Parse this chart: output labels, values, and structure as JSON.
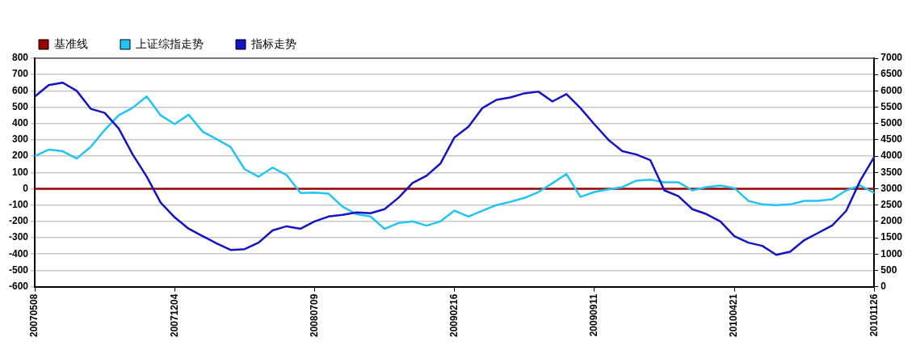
{
  "chart_data": {
    "type": "line",
    "categories": [
      "20070508",
      null,
      null,
      null,
      null,
      null,
      null,
      null,
      null,
      null,
      "20071204",
      null,
      null,
      null,
      null,
      null,
      null,
      null,
      null,
      null,
      "20080709",
      null,
      null,
      null,
      null,
      null,
      null,
      null,
      null,
      null,
      "20090216",
      null,
      null,
      null,
      null,
      null,
      null,
      null,
      null,
      null,
      "20090911",
      null,
      null,
      null,
      null,
      null,
      null,
      null,
      null,
      null,
      "20100421",
      null,
      null,
      null,
      null,
      null,
      null,
      null,
      null,
      null,
      "20101126"
    ],
    "series": [
      {
        "name": "基准线",
        "color": "#990000",
        "values": [
          0,
          0,
          0,
          0,
          0,
          0,
          0,
          0,
          0,
          0,
          0,
          0,
          0,
          0,
          0,
          0,
          0,
          0,
          0,
          0,
          0,
          0,
          0,
          0,
          0,
          0,
          0,
          0,
          0,
          0,
          0,
          0,
          0,
          0,
          0,
          0,
          0,
          0,
          0,
          0,
          0,
          0,
          0,
          0,
          0,
          0,
          0,
          0,
          0,
          0,
          0,
          0,
          0,
          0,
          0,
          0,
          0,
          0,
          0,
          0,
          0
        ]
      },
      {
        "name": "上证综指走势",
        "color": "#22c4f4",
        "axis": "y2",
        "values": [
          4000,
          4200,
          4150,
          3925,
          4280,
          4800,
          5250,
          5480,
          5830,
          5250,
          4980,
          5270,
          4750,
          4520,
          4280,
          3600,
          3370,
          3650,
          3420,
          2870,
          2880,
          2850,
          2450,
          2220,
          2150,
          1770,
          1950,
          2000,
          1870,
          2000,
          2330,
          2150,
          2330,
          2500,
          2600,
          2720,
          2900,
          3170,
          3450,
          2750,
          2900,
          2980,
          3050,
          3250,
          3280,
          3200,
          3200,
          2950,
          3050,
          3100,
          3020,
          2630,
          2520,
          2500,
          2520,
          2630,
          2630,
          2680,
          2950,
          3100,
          2870
        ]
      },
      {
        "name": "指标走势",
        "color": "#1414c4",
        "values": [
          565,
          635,
          650,
          600,
          490,
          465,
          370,
          210,
          75,
          -85,
          -175,
          -245,
          -290,
          -335,
          -375,
          -370,
          -330,
          -255,
          -230,
          -245,
          -200,
          -170,
          -160,
          -145,
          -150,
          -125,
          -55,
          35,
          80,
          155,
          315,
          380,
          495,
          545,
          560,
          585,
          595,
          535,
          580,
          495,
          395,
          300,
          230,
          210,
          175,
          -10,
          -45,
          -125,
          -155,
          -200,
          -290,
          -330,
          -350,
          -405,
          -385,
          -315,
          -270,
          -225,
          -135,
          50,
          195
        ]
      }
    ],
    "ylim": [
      -600,
      800
    ],
    "yticks": [
      -600,
      -500,
      -400,
      -300,
      -200,
      -100,
      0,
      100,
      200,
      300,
      400,
      500,
      600,
      700,
      800
    ],
    "y2lim": [
      0,
      7000
    ],
    "y2ticks": [
      0,
      500,
      1000,
      1500,
      2000,
      2500,
      3000,
      3500,
      4000,
      4500,
      5000,
      5500,
      6000,
      6500,
      7000
    ],
    "grid": "y",
    "legend": "top left",
    "marker": "none",
    "line_style": "solid"
  }
}
